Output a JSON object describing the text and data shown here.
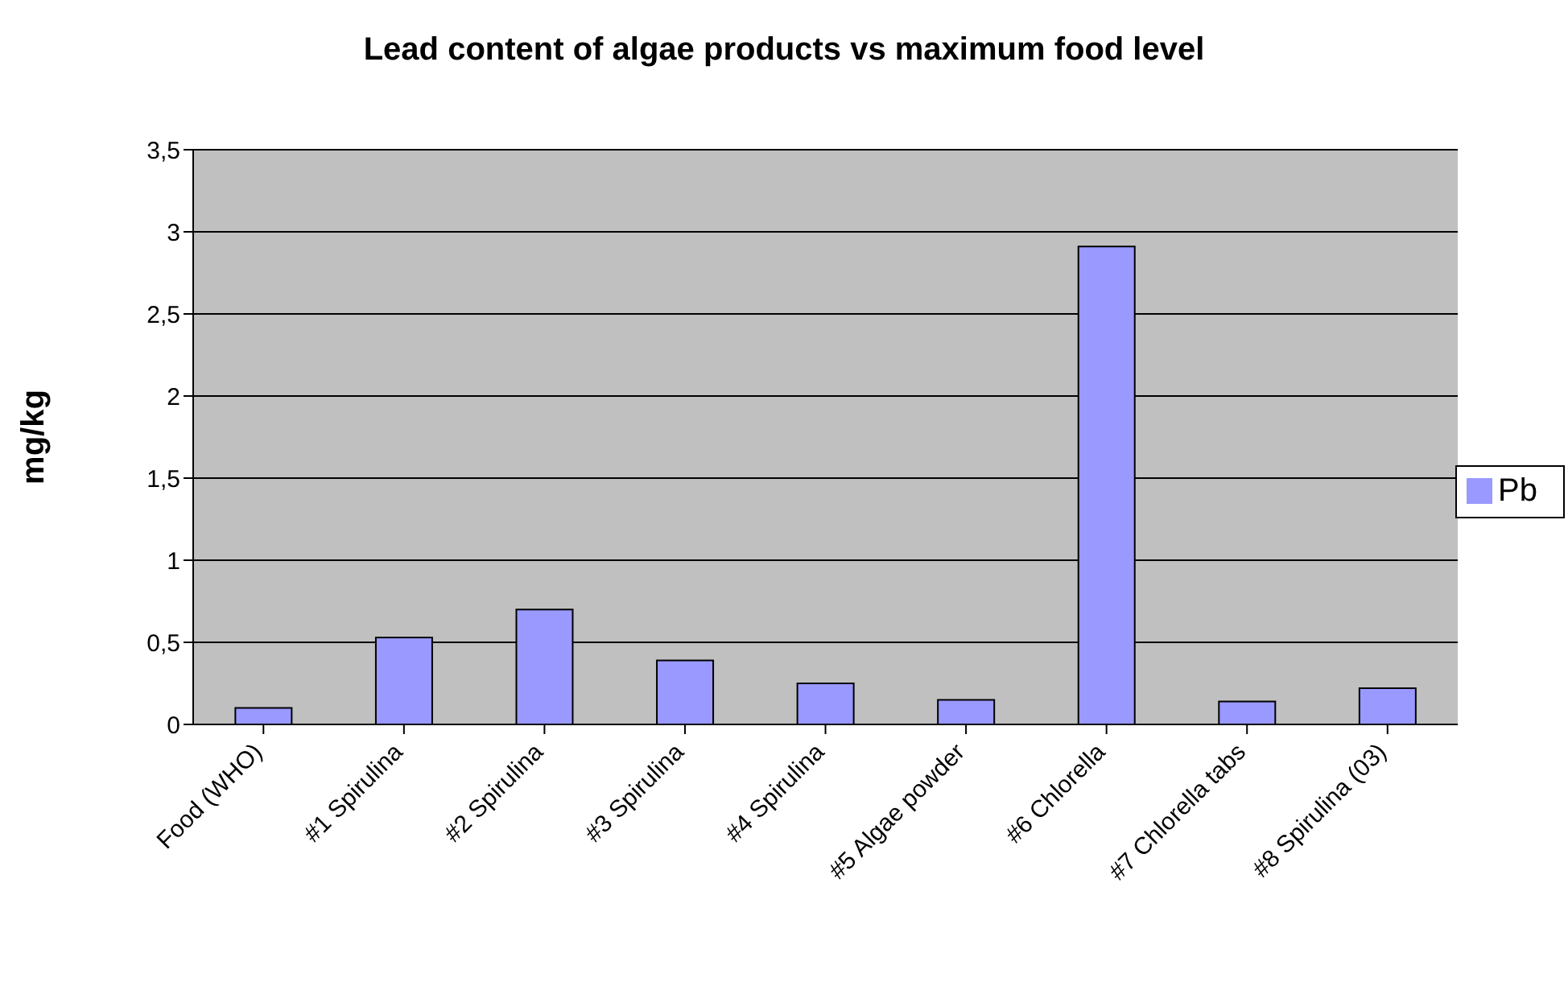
{
  "chart_data": {
    "type": "bar",
    "title": "Lead content of algae products vs maximum food level",
    "ylabel": "mg/kg",
    "categories": [
      "Food (WHO)",
      "#1 Spirulina",
      "#2 Spirulina",
      "#3 Spirulina",
      "#4 Spirulina",
      "#5 Algae powder",
      "#6 Chlorella",
      "#7 Chlorella tabs",
      "#8 Spirulina (03)"
    ],
    "series": [
      {
        "name": "Pb",
        "color": "#9999ff",
        "values": [
          0.1,
          0.53,
          0.7,
          0.39,
          0.25,
          0.15,
          2.91,
          0.14,
          0.22
        ]
      }
    ],
    "ylim": [
      0,
      3.5
    ],
    "yticks": [
      0,
      {
        "value": 0.5,
        "label": "0,5"
      },
      1,
      {
        "value": 1.5,
        "label": "1,5"
      },
      2,
      {
        "value": 2.5,
        "label": "2,5"
      },
      3,
      {
        "value": 3.5,
        "label": "3,5"
      }
    ],
    "grid": "y",
    "legend": "right"
  }
}
